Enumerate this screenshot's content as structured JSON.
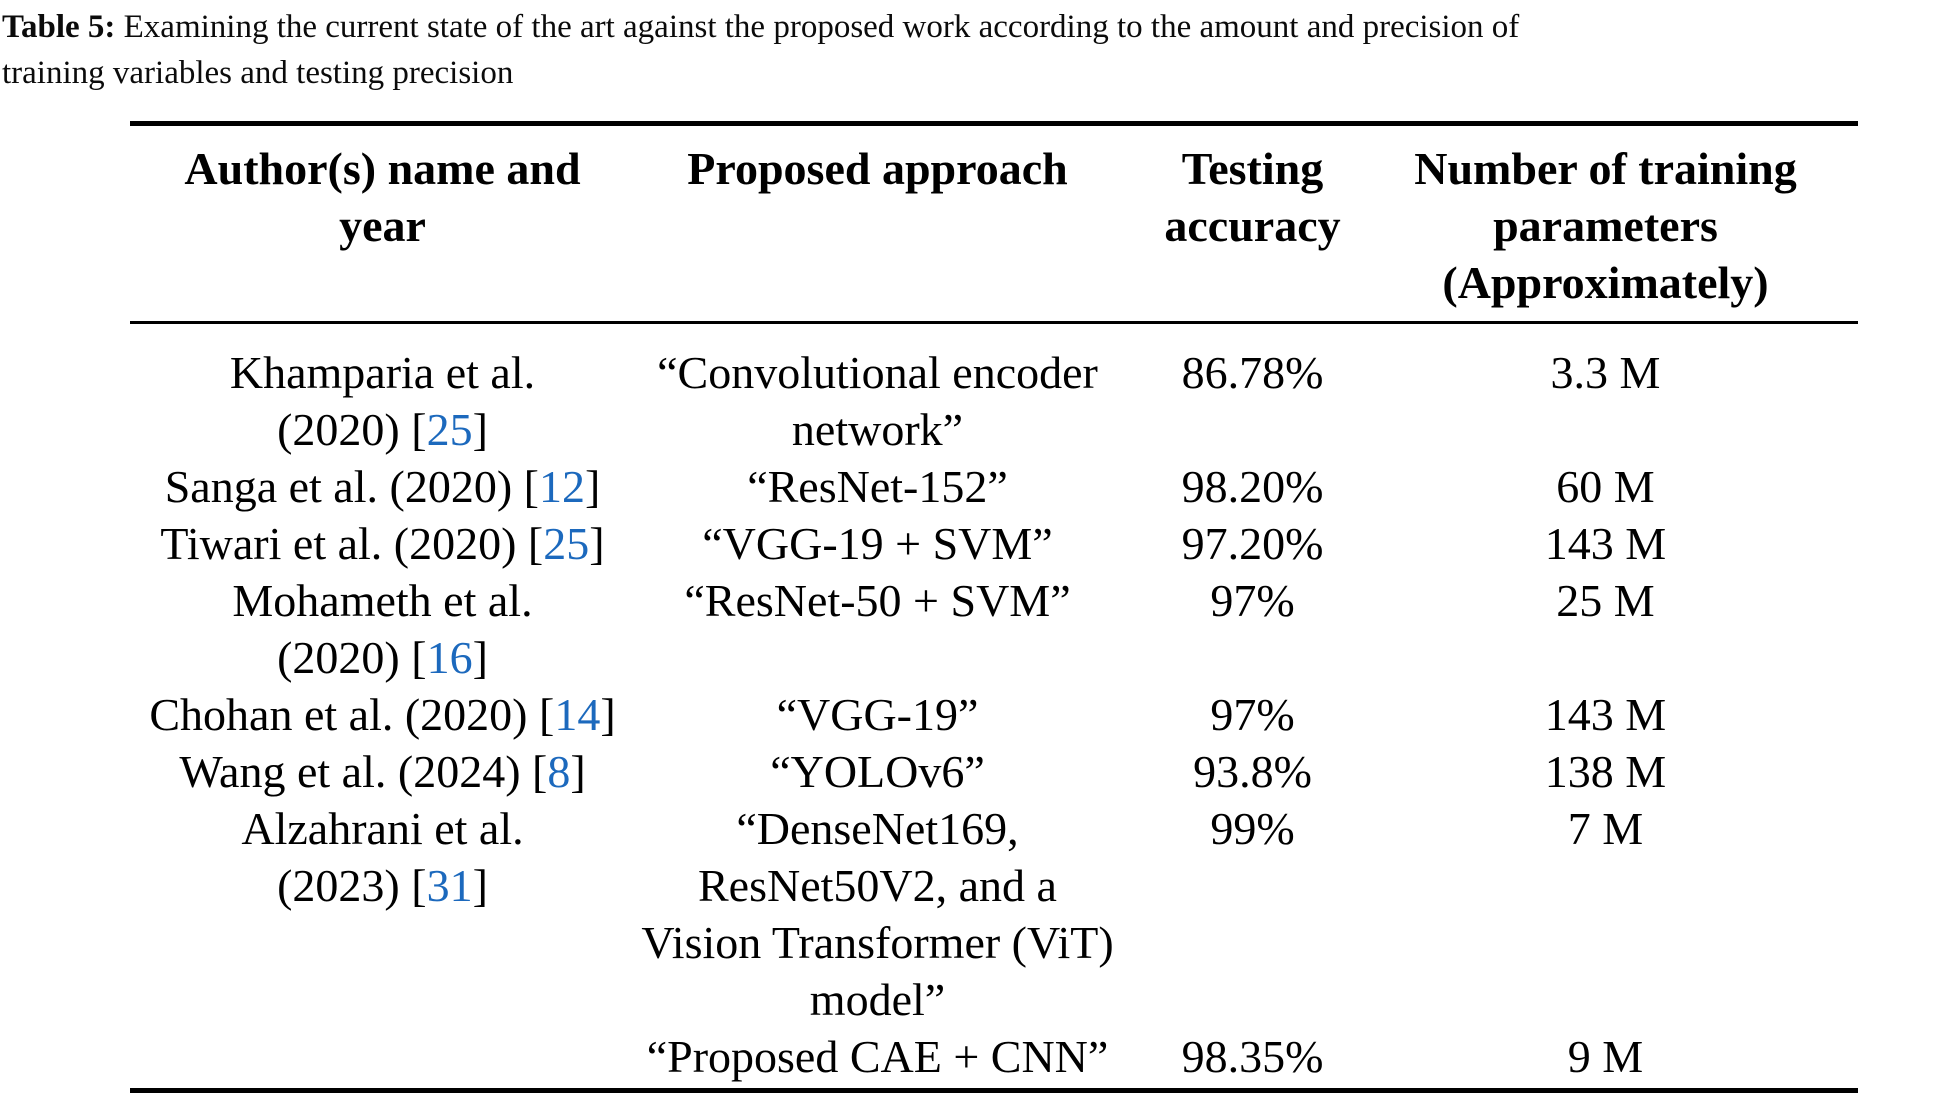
{
  "caption": {
    "label": "Table 5:",
    "lines": [
      "Examining the current state of the art against the proposed work according to the amount and precision of",
      "training variables and testing precision"
    ]
  },
  "colors": {
    "text": "#000000",
    "citation": "#1c69bd",
    "rule": "#000000",
    "background": "#ffffff"
  },
  "table": {
    "columns": [
      {
        "id": "author",
        "header_lines": [
          "Author(s) name and",
          "year"
        ]
      },
      {
        "id": "approach",
        "header_lines": [
          "Proposed approach"
        ]
      },
      {
        "id": "accuracy",
        "header_lines": [
          "Testing",
          "accuracy"
        ]
      },
      {
        "id": "params",
        "header_lines": [
          "Number of training",
          "parameters",
          "(Approximately)"
        ]
      }
    ],
    "rows": [
      {
        "author_lines": [
          [
            "Khamparia et al."
          ],
          [
            "(2020) [",
            {
              "cite": "25"
            },
            "]"
          ]
        ],
        "approach_lines": [
          [
            "“Convolutional encoder"
          ],
          [
            "network”"
          ]
        ],
        "accuracy": "86.78%",
        "params": "3.3 M"
      },
      {
        "author_lines": [
          [
            "Sanga et al. (2020) [",
            {
              "cite": "12"
            },
            "]"
          ]
        ],
        "approach_lines": [
          [
            "“ResNet-152”"
          ]
        ],
        "accuracy": "98.20%",
        "params": "60 M"
      },
      {
        "author_lines": [
          [
            "Tiwari et al. (2020) [",
            {
              "cite": "25"
            },
            "]"
          ]
        ],
        "approach_lines": [
          [
            "“VGG-19 + SVM”"
          ]
        ],
        "accuracy": "97.20%",
        "params": "143 M"
      },
      {
        "author_lines": [
          [
            "Mohameth et al."
          ],
          [
            "(2020) [",
            {
              "cite": "16"
            },
            "]"
          ]
        ],
        "approach_lines": [
          [
            "“ResNet-50 + SVM”"
          ]
        ],
        "accuracy": "97%",
        "params": "25 M"
      },
      {
        "author_lines": [
          [
            "Chohan et al. (2020) [",
            {
              "cite": "14"
            },
            "]"
          ]
        ],
        "approach_lines": [
          [
            "“VGG-19”"
          ]
        ],
        "accuracy": "97%",
        "params": "143 M"
      },
      {
        "author_lines": [
          [
            "Wang et al. (2024) [",
            {
              "cite": "8"
            },
            "]"
          ]
        ],
        "approach_lines": [
          [
            "“YOLOv6”"
          ]
        ],
        "accuracy": "93.8%",
        "params": "138 M"
      },
      {
        "author_lines": [
          [
            "Alzahrani et al."
          ],
          [
            "(2023) [",
            {
              "cite": "31"
            },
            "]"
          ]
        ],
        "approach_lines": [
          [
            "“DenseNet169,"
          ],
          [
            "ResNet50V2, and a"
          ],
          [
            "Vision Transformer (ViT)"
          ],
          [
            "model”"
          ]
        ],
        "accuracy": "99%",
        "params": "7 M"
      },
      {
        "author_lines": [],
        "approach_lines": [
          [
            "“Proposed CAE + CNN”"
          ]
        ],
        "accuracy": "98.35%",
        "params": "9 M"
      }
    ]
  }
}
